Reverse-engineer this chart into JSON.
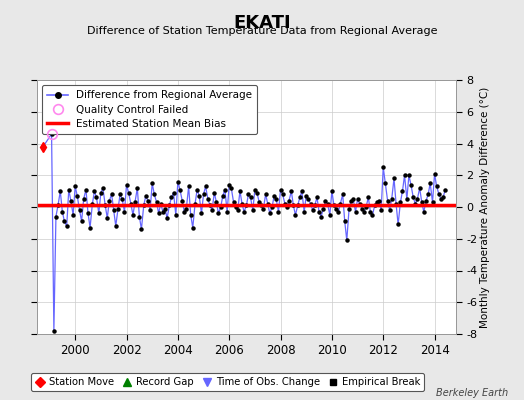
{
  "title": "EKATI",
  "subtitle": "Difference of Station Temperature Data from Regional Average",
  "ylabel_right": "Monthly Temperature Anomaly Difference (°C)",
  "ylim": [
    -8,
    8
  ],
  "xlim": [
    1998.5,
    2014.83
  ],
  "xticks": [
    2000,
    2002,
    2004,
    2006,
    2008,
    2010,
    2012,
    2014
  ],
  "yticks": [
    -8,
    -6,
    -4,
    -2,
    0,
    2,
    4,
    6,
    8
  ],
  "bias_value": 0.1,
  "background_color": "#e8e8e8",
  "plot_bg_color": "#ffffff",
  "line_color": "#6666ff",
  "bias_color": "#ff0000",
  "grid_color": "#cccccc",
  "footer_text": "Berkeley Earth",
  "legend_top": [
    "Difference from Regional Average",
    "Quality Control Failed",
    "Estimated Station Mean Bias"
  ],
  "legend_bottom": [
    "Station Move",
    "Record Gap",
    "Time of Obs. Change",
    "Empirical Break"
  ],
  "qc_x": [
    1999.08
  ],
  "qc_y": [
    4.6
  ],
  "station_move_x": [
    1998.75
  ],
  "station_move_y": [
    3.8
  ],
  "ts_x": [
    1998.75,
    1999.08,
    1999.17,
    1999.25,
    1999.33,
    1999.42,
    1999.5,
    1999.58,
    1999.67,
    1999.75,
    1999.83,
    1999.92,
    2000.0,
    2000.08,
    2000.17,
    2000.25,
    2000.33,
    2000.42,
    2000.5,
    2000.58,
    2000.67,
    2000.75,
    2000.83,
    2000.92,
    2001.0,
    2001.08,
    2001.17,
    2001.25,
    2001.33,
    2001.42,
    2001.5,
    2001.58,
    2001.67,
    2001.75,
    2001.83,
    2001.92,
    2002.0,
    2002.08,
    2002.17,
    2002.25,
    2002.33,
    2002.42,
    2002.5,
    2002.58,
    2002.67,
    2002.75,
    2002.83,
    2002.92,
    2003.0,
    2003.08,
    2003.17,
    2003.25,
    2003.33,
    2003.42,
    2003.5,
    2003.58,
    2003.67,
    2003.75,
    2003.83,
    2003.92,
    2004.0,
    2004.08,
    2004.17,
    2004.25,
    2004.33,
    2004.42,
    2004.5,
    2004.58,
    2004.67,
    2004.75,
    2004.83,
    2004.92,
    2005.0,
    2005.08,
    2005.17,
    2005.25,
    2005.33,
    2005.42,
    2005.5,
    2005.58,
    2005.67,
    2005.75,
    2005.83,
    2005.92,
    2006.0,
    2006.08,
    2006.17,
    2006.25,
    2006.33,
    2006.42,
    2006.5,
    2006.58,
    2006.67,
    2006.75,
    2006.83,
    2006.92,
    2007.0,
    2007.08,
    2007.17,
    2007.25,
    2007.33,
    2007.42,
    2007.5,
    2007.58,
    2007.67,
    2007.75,
    2007.83,
    2007.92,
    2008.0,
    2008.08,
    2008.17,
    2008.25,
    2008.33,
    2008.42,
    2008.5,
    2008.58,
    2008.67,
    2008.75,
    2008.83,
    2008.92,
    2009.0,
    2009.08,
    2009.17,
    2009.25,
    2009.33,
    2009.42,
    2009.5,
    2009.58,
    2009.67,
    2009.75,
    2009.83,
    2009.92,
    2010.0,
    2010.08,
    2010.17,
    2010.25,
    2010.33,
    2010.42,
    2010.5,
    2010.58,
    2010.67,
    2010.75,
    2010.83,
    2010.92,
    2011.0,
    2011.08,
    2011.17,
    2011.25,
    2011.33,
    2011.42,
    2011.5,
    2011.58,
    2011.67,
    2011.75,
    2011.83,
    2011.92,
    2012.0,
    2012.08,
    2012.17,
    2012.25,
    2012.33,
    2012.42,
    2012.5,
    2012.58,
    2012.67,
    2012.75,
    2012.83,
    2012.92,
    2013.0,
    2013.08,
    2013.17,
    2013.25,
    2013.33,
    2013.42,
    2013.5,
    2013.58,
    2013.67,
    2013.75,
    2013.83,
    2013.92,
    2014.0,
    2014.08,
    2014.17,
    2014.25,
    2014.33,
    2014.42
  ],
  "ts_y": [
    3.8,
    4.6,
    -7.8,
    -0.6,
    0.1,
    1.0,
    -0.3,
    -0.9,
    -1.2,
    1.1,
    0.4,
    -0.5,
    1.3,
    0.7,
    -0.2,
    -0.9,
    0.5,
    1.1,
    -0.4,
    -1.3,
    0.2,
    1.0,
    0.6,
    -0.4,
    0.9,
    1.2,
    0.1,
    -0.7,
    0.4,
    0.8,
    -0.2,
    -1.2,
    -0.1,
    0.8,
    0.5,
    -0.3,
    1.4,
    0.9,
    0.2,
    -0.5,
    0.3,
    1.2,
    -0.6,
    -1.4,
    0.1,
    0.7,
    0.4,
    -0.2,
    1.5,
    0.8,
    0.3,
    -0.4,
    0.2,
    -0.3,
    -0.1,
    -0.7,
    0.1,
    0.6,
    0.9,
    -0.5,
    1.6,
    1.1,
    0.4,
    -0.3,
    -0.1,
    1.3,
    -0.5,
    -1.3,
    0.2,
    1.1,
    0.7,
    -0.4,
    0.8,
    1.3,
    0.5,
    0.1,
    -0.2,
    0.9,
    0.3,
    -0.4,
    0.0,
    0.7,
    1.1,
    -0.3,
    1.4,
    1.2,
    0.3,
    0.0,
    -0.2,
    1.0,
    0.2,
    -0.3,
    0.1,
    0.8,
    0.6,
    -0.2,
    1.1,
    0.9,
    0.3,
    0.1,
    -0.1,
    0.8,
    0.2,
    -0.4,
    0.0,
    0.7,
    0.5,
    -0.3,
    1.1,
    0.8,
    0.2,
    0.0,
    0.4,
    1.0,
    0.1,
    -0.5,
    0.1,
    0.6,
    1.0,
    -0.3,
    0.7,
    0.5,
    0.2,
    -0.2,
    0.1,
    0.6,
    -0.3,
    -0.6,
    -0.1,
    0.4,
    0.2,
    -0.5,
    1.0,
    0.1,
    -0.1,
    -0.3,
    0.2,
    0.8,
    -0.9,
    -2.1,
    -0.1,
    0.4,
    0.5,
    -0.3,
    0.5,
    0.2,
    -0.1,
    -0.3,
    0.0,
    0.6,
    -0.3,
    -0.5,
    0.1,
    0.3,
    0.4,
    -0.2,
    2.5,
    1.5,
    0.4,
    -0.2,
    0.5,
    1.8,
    0.2,
    -1.1,
    0.3,
    1.0,
    2.0,
    0.5,
    2.0,
    1.4,
    0.6,
    0.2,
    0.5,
    1.2,
    0.3,
    -0.3,
    0.4,
    0.8,
    1.5,
    0.3,
    2.1,
    1.3,
    0.8,
    0.5,
    0.6,
    1.1
  ]
}
